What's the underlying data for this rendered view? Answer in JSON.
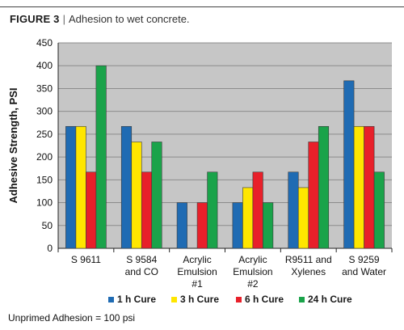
{
  "figure": {
    "label": "FIGURE 3",
    "separator": "|",
    "caption": "Adhesion to wet concrete."
  },
  "footnote": "Unprimed Adhesion = 100 psi",
  "colors": {
    "plot_background": "#c6c6c6",
    "gridline": "#8c8c8c",
    "series": [
      "#1f6bb3",
      "#ffe600",
      "#e8202a",
      "#1aa34a"
    ]
  },
  "chart_data": {
    "type": "bar",
    "ylabel": "Adhesive Strength, PSI",
    "xlabel": "",
    "ylim": [
      0,
      450
    ],
    "yticks": [
      0,
      50,
      100,
      150,
      200,
      250,
      300,
      350,
      400,
      450
    ],
    "grid": true,
    "legend_position": "bottom",
    "categories": [
      [
        "S 9611"
      ],
      [
        "S 9584",
        "and CO"
      ],
      [
        "Acrylic",
        "Emulsion",
        "#1"
      ],
      [
        "Acrylic",
        "Emulsion",
        "#2"
      ],
      [
        "R9511 and",
        "Xylenes"
      ],
      [
        "S 9259",
        "and Water"
      ]
    ],
    "series": [
      {
        "name": "1 h Cure",
        "color": "#1f6bb3",
        "values": [
          267,
          267,
          100,
          100,
          167,
          367
        ]
      },
      {
        "name": "3 h Cure",
        "color": "#ffe600",
        "values": [
          267,
          233,
          0,
          133,
          133,
          267
        ]
      },
      {
        "name": "6 h Cure",
        "color": "#e8202a",
        "values": [
          167,
          167,
          100,
          167,
          233,
          267
        ]
      },
      {
        "name": "24 h Cure",
        "color": "#1aa34a",
        "values": [
          400,
          233,
          167,
          100,
          267,
          167
        ]
      }
    ]
  }
}
